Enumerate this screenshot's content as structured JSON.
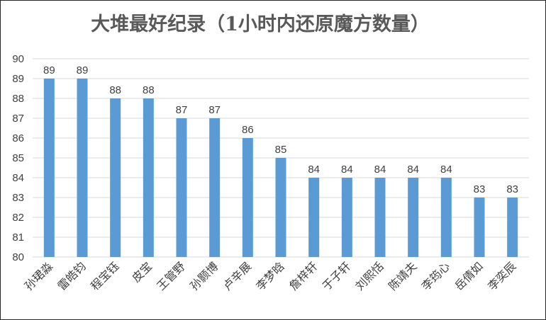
{
  "chart_data": {
    "type": "bar",
    "title": "大堆最好纪录（1小时内还原魔方数量）",
    "xlabel": "",
    "ylabel": "",
    "categories": [
      "孙珺淼",
      "雷皓钧",
      "程宝钰",
      "皮宝",
      "王管野",
      "孙颢博",
      "卢辛展",
      "李梦晗",
      "詹梓轩",
      "于子轩",
      "刘熙恬",
      "陈靖夫",
      "李筠心",
      "岳倩如",
      "李奕辰"
    ],
    "values": [
      89,
      89,
      88,
      88,
      87,
      87,
      86,
      85,
      84,
      84,
      84,
      84,
      84,
      83,
      83
    ],
    "ylim": [
      80,
      90
    ],
    "yticks": [
      "80",
      "81",
      "82",
      "83",
      "84",
      "85",
      "86",
      "87",
      "88",
      "89",
      "90"
    ],
    "grid": true,
    "data_labels": true,
    "colors": {
      "bar": "#5b9bd5",
      "grid": "#d9d9d9",
      "text": "#404040",
      "title": "#595959"
    }
  }
}
